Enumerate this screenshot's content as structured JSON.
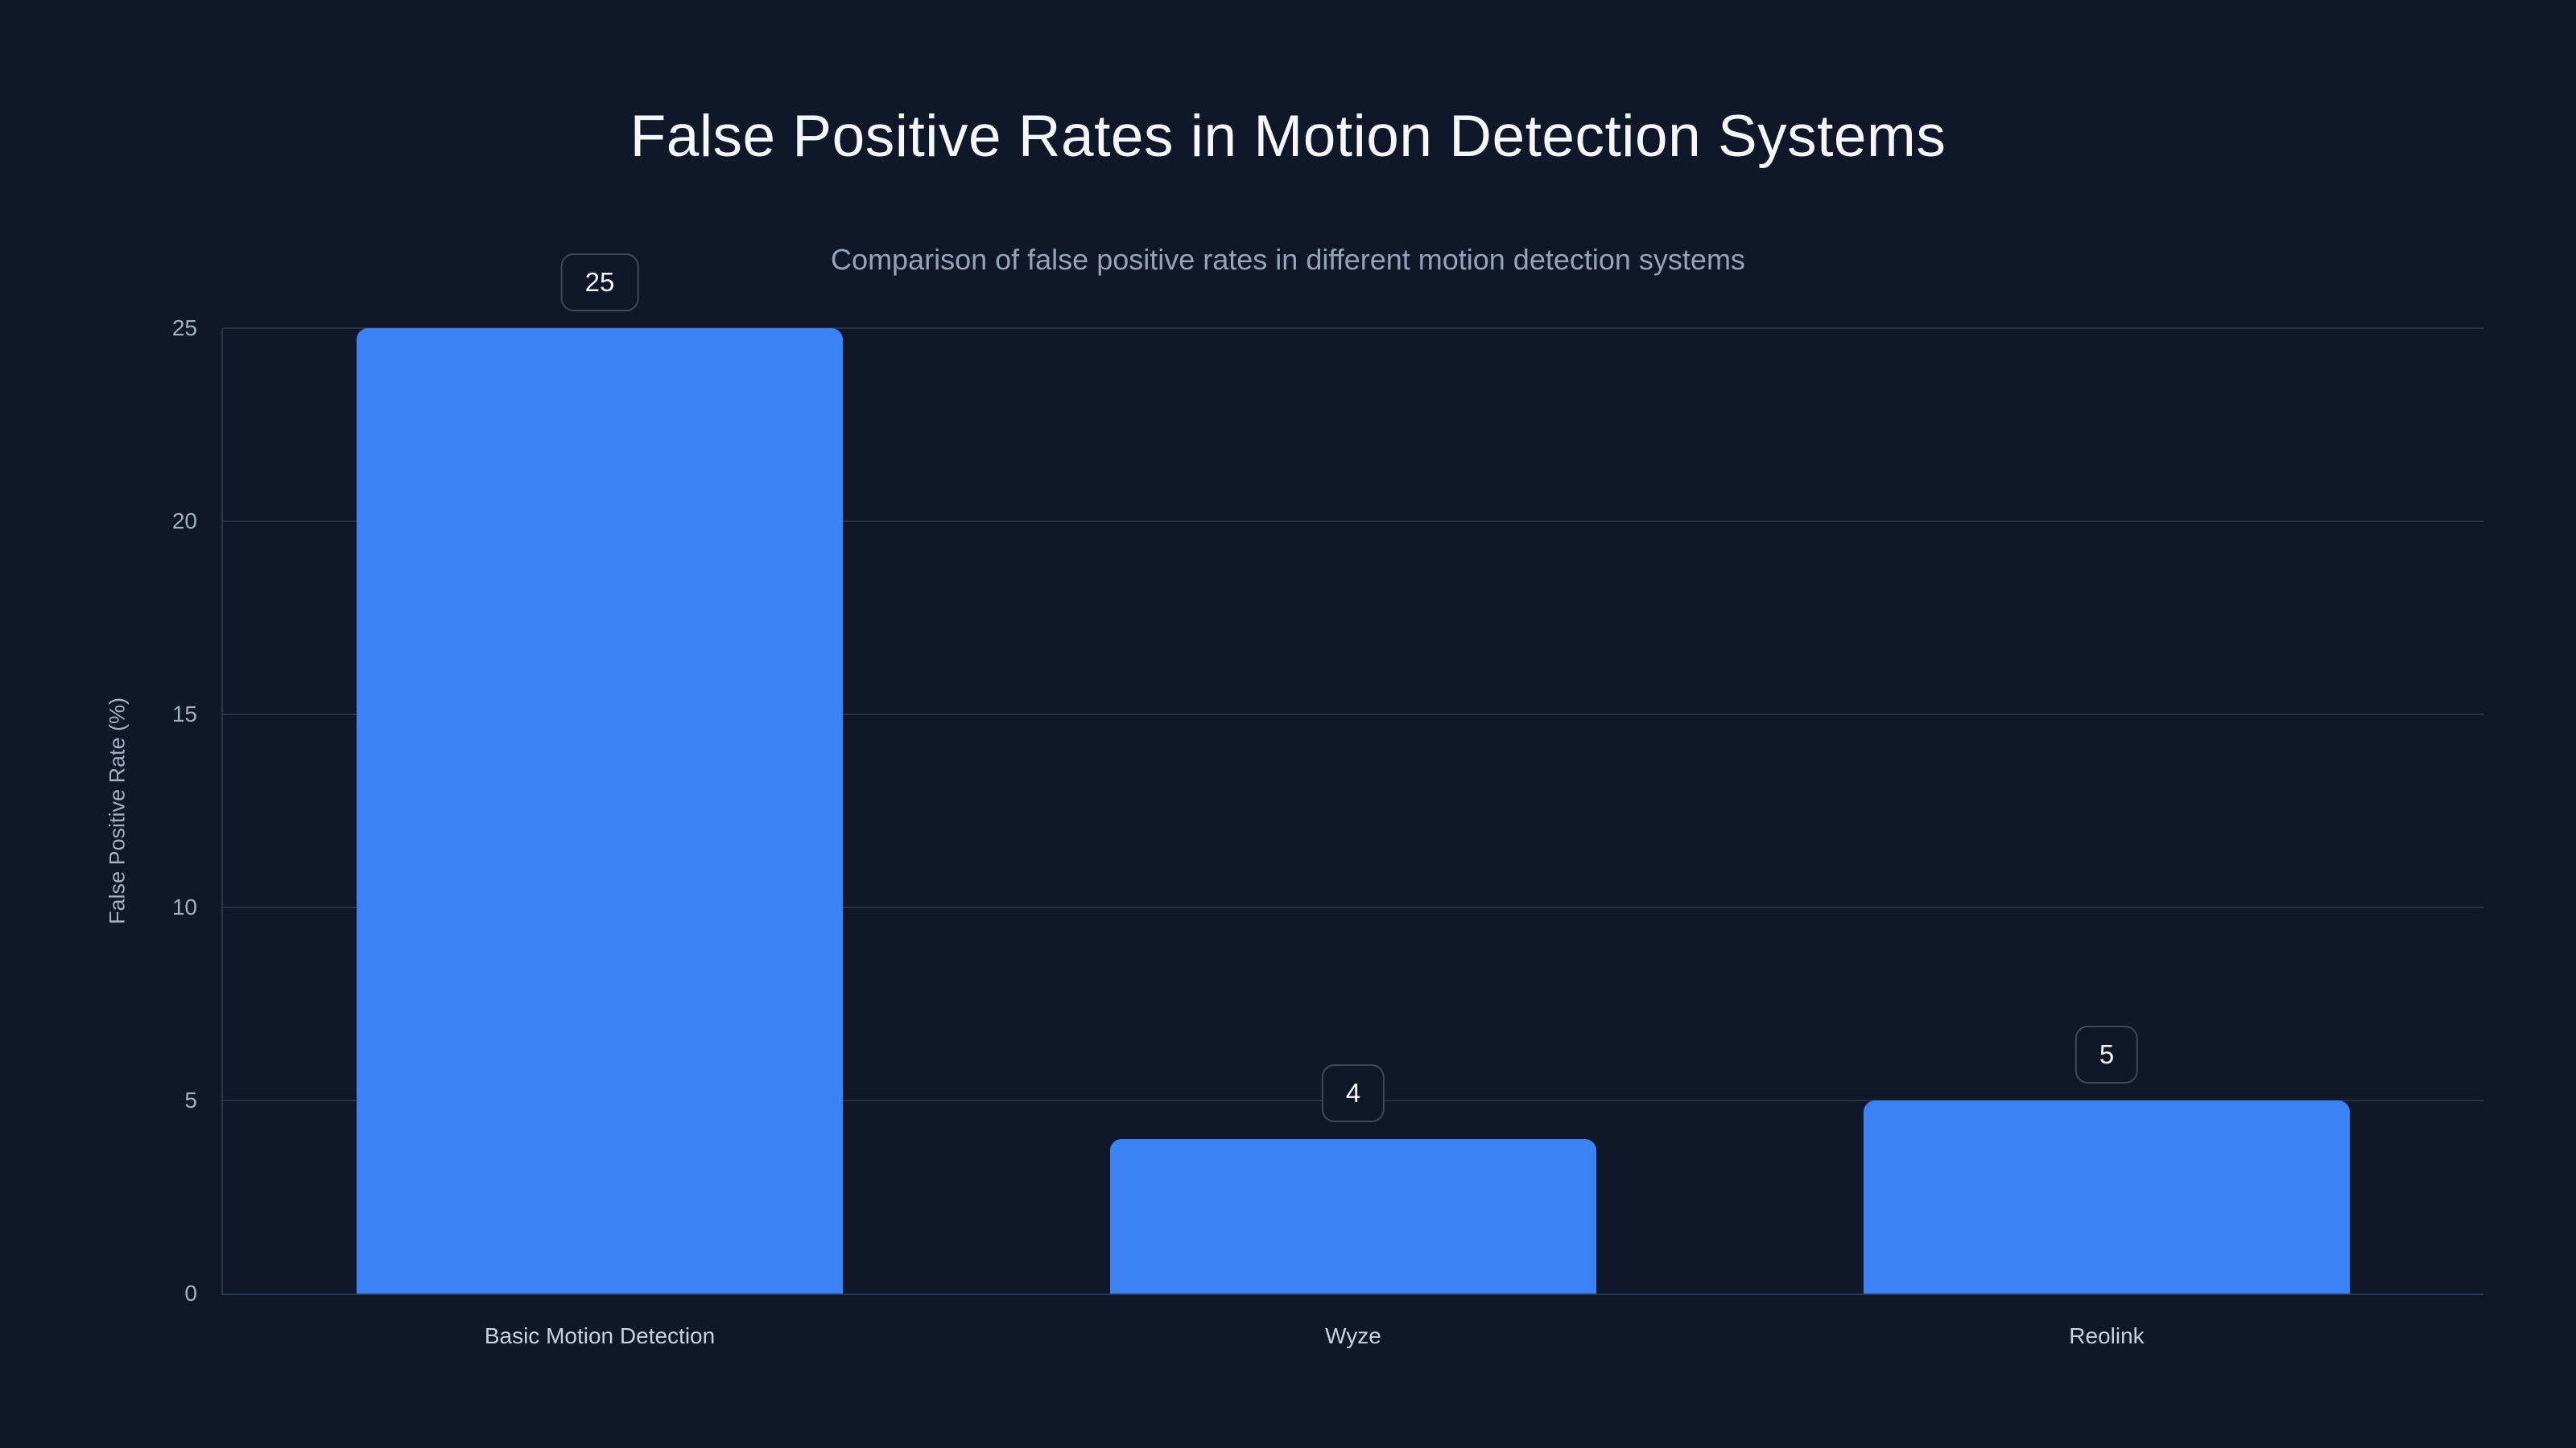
{
  "chart_data": {
    "type": "bar",
    "title": "False Positive Rates in Motion Detection Systems",
    "subtitle": "Comparison of false positive rates in different motion detection systems",
    "categories": [
      "Basic Motion Detection",
      "Wyze",
      "Reolink"
    ],
    "values": [
      25,
      4,
      5
    ],
    "value_labels": [
      "25",
      "4",
      "5"
    ],
    "xlabel": "",
    "ylabel": "False Positive Rate (%)",
    "ylim": [
      0,
      25
    ],
    "yticks": [
      "0",
      "5",
      "10",
      "15",
      "20",
      "25"
    ],
    "grid": "horizontal",
    "legend": "none",
    "colors": {
      "background": "#0f1728",
      "bar": "#3b82f6",
      "gridline": "#273147",
      "title_text": "#f4f7fb",
      "subtitle_text": "#94a3b8",
      "tick_text": "#a3afc2",
      "category_text": "#c7d1df",
      "badge_border": "#3d485c",
      "badge_text": "#f4f7fb"
    }
  }
}
